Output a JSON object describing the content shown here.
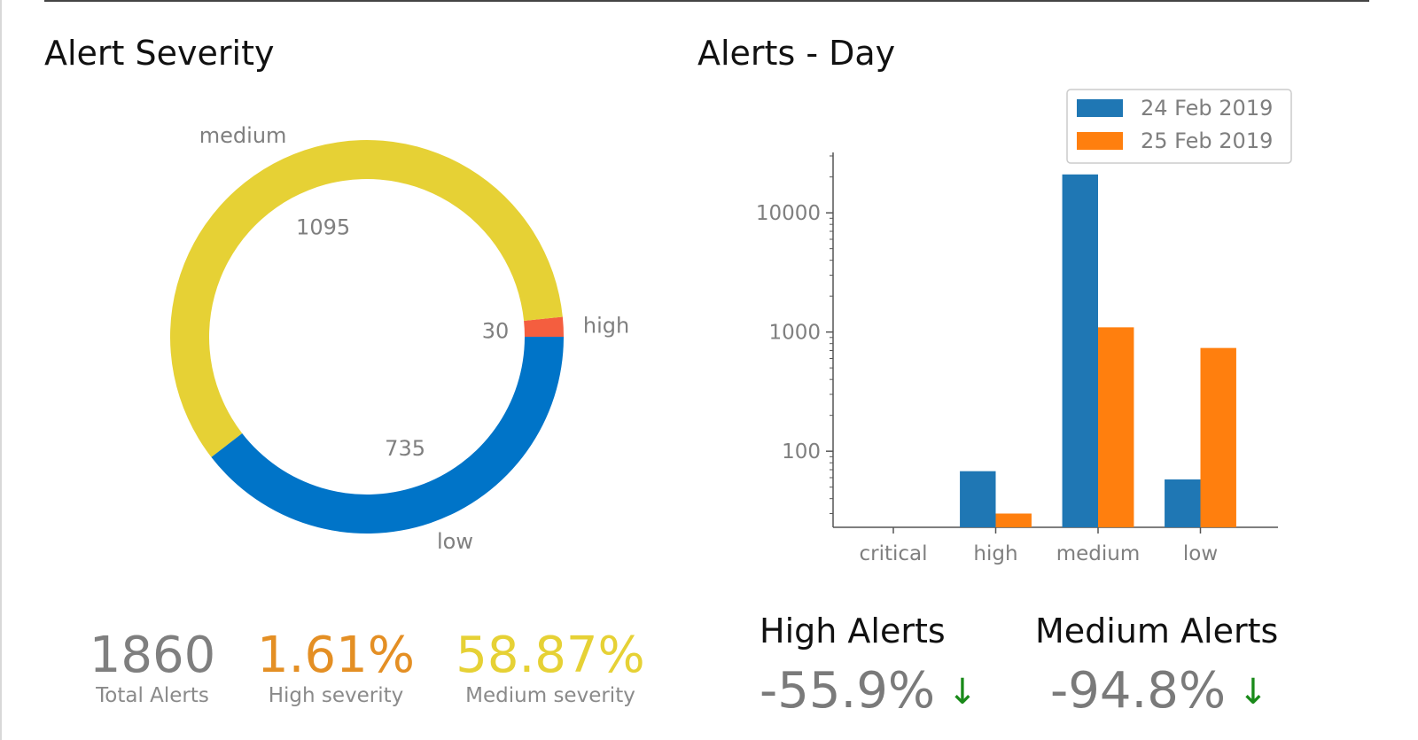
{
  "left_panel": {
    "title": "Alert Severity"
  },
  "right_panel": {
    "title": "Alerts - Day"
  },
  "colors": {
    "low": "#0074c8",
    "high": "#f45e3f",
    "medium": "#e6d135",
    "series_1": "#1f77b4",
    "series_2": "#ff7f0e",
    "total": "#7f7f7f",
    "high_pct": "#e48f24",
    "medium_pct": "#e6d135",
    "arrow_down": "#1a8a1a"
  },
  "chart_data": [
    {
      "type": "pie",
      "style": "donut",
      "title": "Alert Severity",
      "slices": [
        {
          "label": "high",
          "value": 30,
          "color": "#f45e3f"
        },
        {
          "label": "medium",
          "value": 1095,
          "color": "#e6d135"
        },
        {
          "label": "low",
          "value": 735,
          "color": "#0074c8"
        }
      ]
    },
    {
      "type": "bar",
      "title": "Alerts - Day",
      "yscale": "log",
      "ylim": [
        23,
        30000
      ],
      "categories": [
        "critical",
        "high",
        "medium",
        "low"
      ],
      "yticks": [
        "100",
        "1000",
        "10000"
      ],
      "series": [
        {
          "name": "24 Feb 2019",
          "color": "#1f77b4",
          "values": [
            null,
            68,
            21000,
            58
          ]
        },
        {
          "name": "25 Feb 2019",
          "color": "#ff7f0e",
          "values": [
            null,
            30,
            1095,
            735
          ]
        }
      ],
      "legend_position": "top-right"
    }
  ],
  "stats": {
    "total": {
      "value": "1860",
      "label": "Total Alerts"
    },
    "high": {
      "value": "1.61%",
      "label": "High severity"
    },
    "medium": {
      "value": "58.87%",
      "label": "Medium severity"
    }
  },
  "kpis": {
    "high": {
      "title": "High Alerts",
      "value": "-55.9%",
      "arrow": "↓"
    },
    "medium": {
      "title": "Medium Alerts",
      "value": "-94.8%",
      "arrow": "↓"
    }
  }
}
